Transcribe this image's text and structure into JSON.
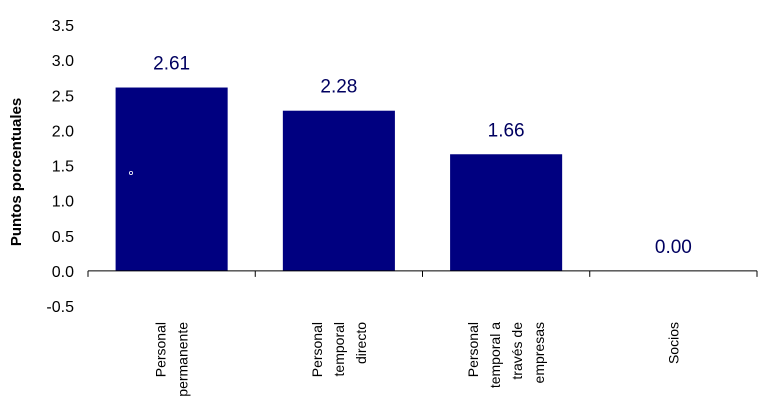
{
  "chart_data": {
    "type": "bar",
    "title": "",
    "xlabel": "",
    "ylabel": "Puntos porcentuales",
    "categories": [
      [
        "Personal",
        "permanente"
      ],
      [
        "Personal",
        "temporal",
        "directo"
      ],
      [
        "Personal",
        "temporal a",
        "través de",
        "empresas"
      ],
      [
        "Socios"
      ]
    ],
    "values": [
      2.61,
      2.28,
      1.66,
      0.0
    ],
    "data_labels": [
      "2.61",
      "2.28",
      "1.66",
      "0.00"
    ],
    "ylim": [
      -0.5,
      3.5
    ],
    "yticks": [
      "-0.5",
      "0.0",
      "0.5",
      "1.0",
      "1.5",
      "2.0",
      "2.5",
      "3.0",
      "3.5"
    ],
    "grid": false,
    "legend": "none",
    "bar_color": "#000080"
  }
}
